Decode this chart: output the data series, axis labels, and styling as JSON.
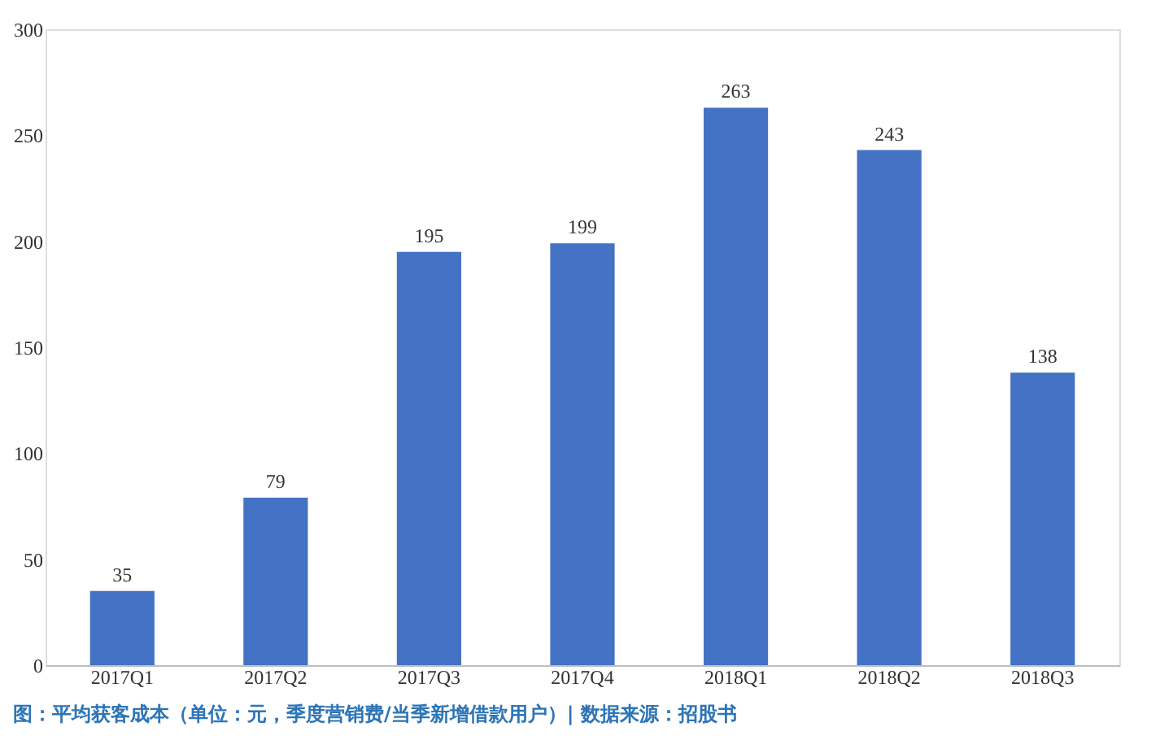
{
  "chart_data": {
    "type": "bar",
    "categories": [
      "2017Q1",
      "2017Q2",
      "2017Q3",
      "2017Q4",
      "2018Q1",
      "2018Q2",
      "2018Q3"
    ],
    "values": [
      35,
      79,
      195,
      199,
      263,
      243,
      138
    ],
    "color": "#4472c4",
    "ylim": [
      0,
      300
    ],
    "yticks": [
      0,
      50,
      100,
      150,
      200,
      250,
      300
    ],
    "grid": false,
    "data_labels": true,
    "annotations": [
      "图：平均获客成本（单位：元，季度营销费/当季新增借款用户）| 数据来源：招股书"
    ]
  }
}
